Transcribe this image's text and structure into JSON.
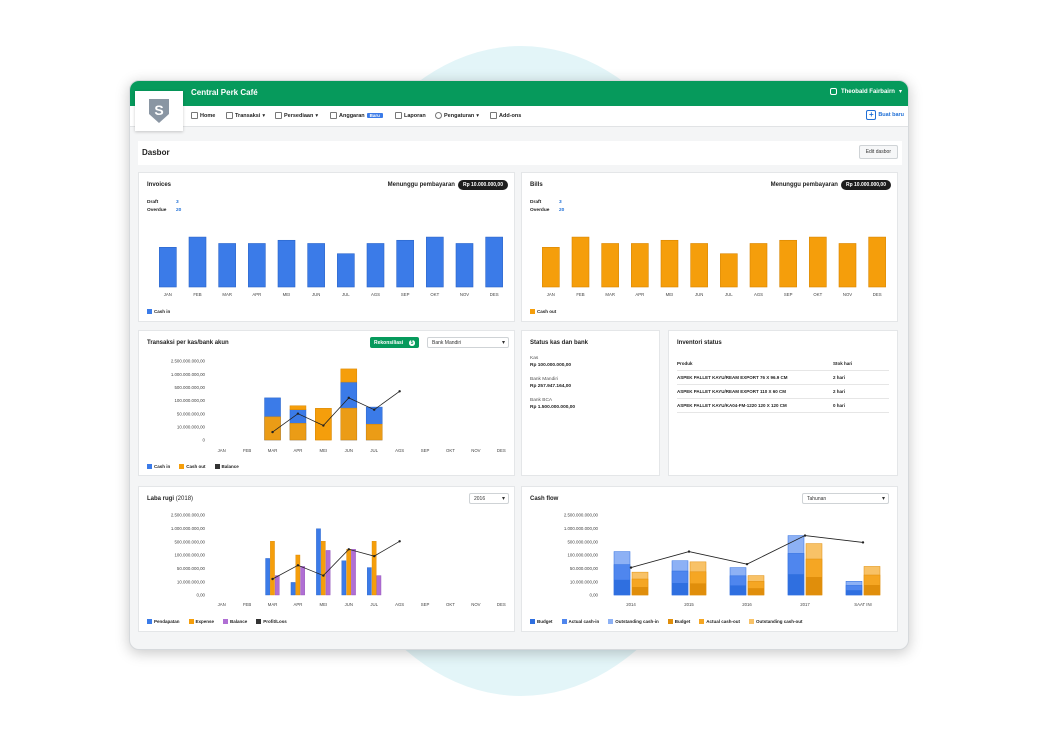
{
  "app": {
    "company": "Central Perk Café",
    "user": "Theobald Fairbairn",
    "logo_letter": "S"
  },
  "nav": {
    "items": [
      {
        "label": "Home"
      },
      {
        "label": "Transaksi"
      },
      {
        "label": "Persediaan"
      },
      {
        "label": "Anggaran",
        "badge": "Baru"
      },
      {
        "label": "Laporan"
      },
      {
        "label": "Pengaturan"
      },
      {
        "label": "Add-ons"
      }
    ],
    "new_label": "Buat baru"
  },
  "page": {
    "title": "Dasbor",
    "edit_label": "Edit dasbor"
  },
  "invoices": {
    "title": "Invoices",
    "await_label": "Menunggu pembayaran",
    "await_amount": "Rp 10.000.000,00",
    "draft_label": "Draft",
    "draft_value": "3",
    "overdue_label": "Overdue",
    "overdue_value": "20",
    "legend": "Cash in",
    "color": "#3b7be8"
  },
  "bills": {
    "title": "Bills",
    "await_label": "Menunggu pembayaran",
    "await_amount": "Rp 10.000.000,00",
    "draft_label": "Draft",
    "draft_value": "3",
    "overdue_label": "Overdue",
    "overdue_value": "20",
    "legend": "Cash out",
    "color": "#f59e0b"
  },
  "transaksi": {
    "title": "Transaksi per kas/bank akun",
    "reconcile_label": "Rekonsiliasi",
    "reconcile_count": "5",
    "account": "Bank Mandiri",
    "y_labels": [
      "2.500.000.000,00",
      "1.000.000.000,00",
      "500.000.000,00",
      "100.000.000,00",
      "50.000.000,00",
      "10.000.000,00",
      "0"
    ],
    "legend": [
      "Cash in",
      "Cash out",
      "Balance"
    ]
  },
  "status": {
    "title": "Status kas dan bank",
    "items": [
      {
        "label": "Kas",
        "value": "Rp 100.000.000,00"
      },
      {
        "label": "Bank Mandiri",
        "value": "Rp 257.947.164,00"
      },
      {
        "label": "Bank BCA",
        "value": "Rp 1.500.000.000,00"
      }
    ]
  },
  "inventory": {
    "title": "Inventori status",
    "col_product": "Produk",
    "col_stock": "Stok hari",
    "rows": [
      {
        "product": "ASPEK PALLET KAYU/REAM EXPORT 76 X 96.9 CM",
        "stock": "2 hari"
      },
      {
        "product": "ASPEK PALLET KAYU/REAM EXPORT 110 X 60 CM",
        "stock": "2 hari"
      },
      {
        "product": "ASPEK PALLET KAYU/KA04-FM-1220 120 X 120 CM",
        "stock": "0 hari"
      }
    ]
  },
  "laba": {
    "title": "Laba rugi",
    "year": "(2018)",
    "select": "2016",
    "y_labels": [
      "2.500.000.000,00",
      "1.000.000.000,00",
      "500.000.000,00",
      "100.000.000,00",
      "50.000.000,00",
      "10.000.000,00",
      "0,00"
    ],
    "legend": [
      "Pendapatan",
      "Expense",
      "Balance",
      "Profit/Loss"
    ]
  },
  "cashflow": {
    "title": "Cash flow",
    "select": "Tahunan",
    "y_labels": [
      "2.500.000.000,00",
      "1.000.000.000,00",
      "500.000.000,00",
      "100.000.000,00",
      "50.000.000,00",
      "10.000.000,00",
      "0,00"
    ],
    "legend": [
      "Budget",
      "Actual cash-in",
      "Outstanding cash-in",
      "Budget",
      "Actual cash-out",
      "Outstanding cash-out"
    ]
  },
  "chart_data": [
    {
      "type": "bar",
      "title": "Invoices",
      "categories": [
        "JAN",
        "FEB",
        "MAR",
        "APR",
        "MEI",
        "JUN",
        "JUL",
        "AGS",
        "SEP",
        "OKT",
        "NOV",
        "DES"
      ],
      "series": [
        {
          "name": "Cash in",
          "values": [
            6.2,
            7.8,
            6.8,
            6.8,
            7.3,
            6.8,
            5.2,
            6.8,
            7.3,
            7.8,
            6.8,
            7.8
          ]
        }
      ],
      "ylim": [
        0,
        10
      ]
    },
    {
      "type": "bar",
      "title": "Bills",
      "categories": [
        "JAN",
        "FEB",
        "MAR",
        "APR",
        "MEI",
        "JUN",
        "JUL",
        "AGS",
        "SEP",
        "OKT",
        "NOV",
        "DES"
      ],
      "series": [
        {
          "name": "Cash out",
          "values": [
            6.2,
            7.8,
            6.8,
            6.8,
            7.3,
            6.8,
            5.2,
            6.8,
            7.3,
            7.8,
            6.8,
            7.8
          ]
        }
      ],
      "ylim": [
        0,
        10
      ]
    },
    {
      "type": "bar",
      "title": "Transaksi per kas/bank akun",
      "categories": [
        "JAN",
        "FEB",
        "MAR",
        "APR",
        "MEI",
        "JUN",
        "JUL",
        "AGS",
        "SEP",
        "OKT",
        "NOV",
        "DES"
      ],
      "series": [
        {
          "name": "Cash in",
          "values": [
            0,
            0,
            3.2,
            2.3,
            0,
            4.4,
            2.5,
            0,
            0,
            0,
            0,
            0
          ]
        },
        {
          "name": "Cash out",
          "values": [
            0,
            0,
            1.8,
            2.6,
            2.4,
            5.4,
            1.2,
            0,
            0,
            0,
            0,
            0
          ]
        },
        {
          "name": "Balance",
          "values": [
            null,
            null,
            0.6,
            2.0,
            1.1,
            3.2,
            2.3,
            3.7,
            null,
            null,
            null,
            null
          ]
        }
      ],
      "ylim": [
        0,
        6
      ]
    },
    {
      "type": "bar",
      "title": "Laba rugi",
      "categories": [
        "JAN",
        "FEB",
        "MAR",
        "APR",
        "MEI",
        "JUN",
        "JUL",
        "AGS",
        "SEP",
        "OKT",
        "NOV",
        "DES"
      ],
      "series": [
        {
          "name": "Pendapatan",
          "values": [
            0,
            0,
            3.2,
            1.1,
            5.8,
            3.0,
            2.4,
            0,
            0,
            0,
            0,
            0
          ]
        },
        {
          "name": "Expense",
          "values": [
            0,
            0,
            4.7,
            3.5,
            4.7,
            4.0,
            4.7,
            0,
            0,
            0,
            0,
            0
          ]
        },
        {
          "name": "Balance",
          "values": [
            0,
            0,
            1.7,
            2.5,
            3.9,
            4.0,
            1.7,
            0,
            0,
            0,
            0,
            0
          ]
        },
        {
          "name": "Profit/Loss",
          "values": [
            null,
            null,
            1.4,
            2.6,
            1.7,
            4.0,
            3.4,
            4.7,
            null,
            null,
            null,
            null
          ]
        }
      ],
      "ylim": [
        0,
        7
      ]
    },
    {
      "type": "bar",
      "title": "Cash flow",
      "categories": [
        "2014",
        "2015",
        "2016",
        "2017",
        "SAAT INI"
      ],
      "series": [
        {
          "name": "Cash in",
          "values": [
            3.8,
            3.0,
            2.4,
            5.2,
            1.2
          ]
        },
        {
          "name": "Cash out",
          "values": [
            2.0,
            2.9,
            1.7,
            4.5,
            2.5
          ]
        },
        {
          "name": "Balance",
          "values": [
            2.4,
            3.8,
            2.7,
            5.2,
            4.6
          ]
        }
      ],
      "ylim": [
        0,
        7
      ]
    }
  ]
}
